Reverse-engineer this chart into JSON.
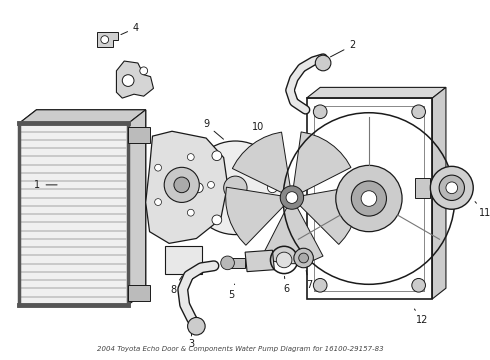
{
  "bg_color": "#ffffff",
  "line_color": "#1a1a1a",
  "label_color": "#111111",
  "title": "2004 Toyota Echo Door & Components Water Pump Diagram for 16100-29157-83",
  "fig_w": 4.9,
  "fig_h": 3.6,
  "dpi": 100
}
